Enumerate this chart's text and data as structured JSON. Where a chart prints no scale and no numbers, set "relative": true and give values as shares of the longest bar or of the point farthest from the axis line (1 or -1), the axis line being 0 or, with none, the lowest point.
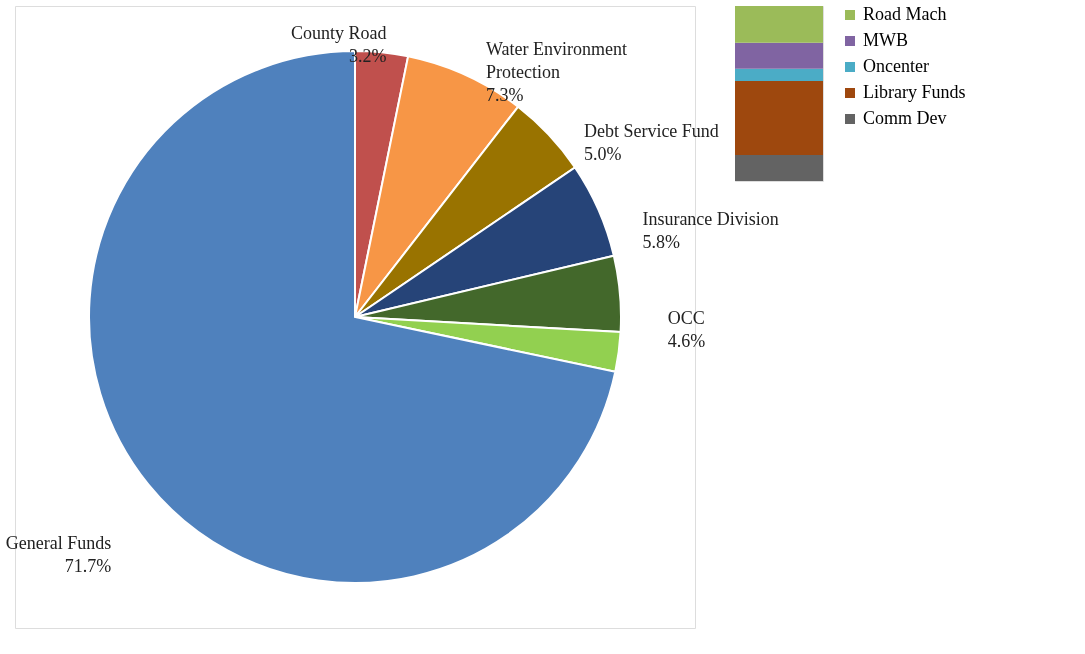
{
  "chart_data": [
    {
      "type": "pie",
      "categories": [
        "County Road",
        "Water Environment Protection",
        "Debt Service Fund",
        "Insurance Division",
        "OCC",
        null,
        "General Funds"
      ],
      "values": [
        3.2,
        7.3,
        5.0,
        5.8,
        4.6,
        2.4,
        71.7
      ],
      "value_labels": [
        "3.2%",
        "7.3%",
        "5.0%",
        "5.8%",
        "4.6%",
        null,
        "71.7%"
      ],
      "colors": [
        "#c0504d",
        "#f79646",
        "#997300",
        "#264478",
        "#43682b",
        "#92d050",
        "#4f81bd"
      ],
      "legend": false
    },
    {
      "type": "bar",
      "stacked": true,
      "relative": true,
      "categories": [
        null
      ],
      "legend": "right",
      "series": [
        {
          "name": "Comm Dev",
          "color": "#636363",
          "values": [
            0.149
          ]
        },
        {
          "name": "Library Funds",
          "color": "#9e480e",
          "values": [
            0.423
          ]
        },
        {
          "name": "Oncenter",
          "color": "#4bacc6",
          "values": [
            0.069
          ]
        },
        {
          "name": "MWB",
          "color": "#8064a2",
          "values": [
            0.149
          ]
        },
        {
          "name": "Road Mach",
          "color": "#9bbb59",
          "values": [
            0.21
          ]
        }
      ]
    }
  ]
}
